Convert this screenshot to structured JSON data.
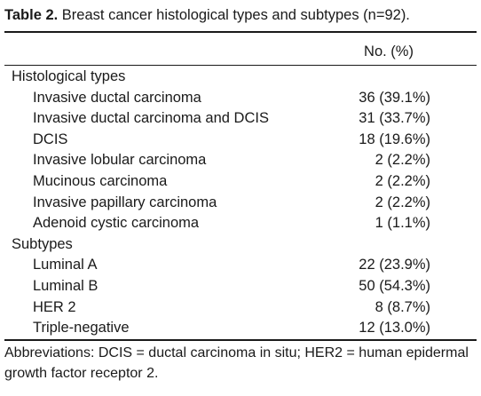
{
  "caption": {
    "label": "Table 2.",
    "text": " Breast cancer histological types and subtypes (n=92)."
  },
  "table": {
    "column_header": "No. (%)",
    "sections": [
      {
        "title": "Histological types",
        "rows": [
          {
            "name": "Invasive ductal carcinoma",
            "value": "36 (39.1%)"
          },
          {
            "name": "Invasive ductal carcinoma and DCIS",
            "value": "31 (33.7%)"
          },
          {
            "name": "DCIS",
            "value": "18 (19.6%)"
          },
          {
            "name": "Invasive lobular carcinoma",
            "value": "2 (2.2%)"
          },
          {
            "name": "Mucinous carcinoma",
            "value": "2 (2.2%)"
          },
          {
            "name": "Invasive papillary carcinoma",
            "value": "2 (2.2%)"
          },
          {
            "name": "Adenoid cystic carcinoma",
            "value": "1 (1.1%)"
          }
        ]
      },
      {
        "title": "Subtypes",
        "rows": [
          {
            "name": "Luminal A",
            "value": "22 (23.9%)"
          },
          {
            "name": "Luminal B",
            "value": "50 (54.3%)"
          },
          {
            "name": "HER 2",
            "value": "8 (8.7%)"
          },
          {
            "name": "Triple-negative",
            "value": "12 (13.0%)"
          }
        ]
      }
    ]
  },
  "footnote": "Abbreviations: DCIS = ductal carcinoma in situ; HER2 = human epidermal growth factor receptor 2."
}
